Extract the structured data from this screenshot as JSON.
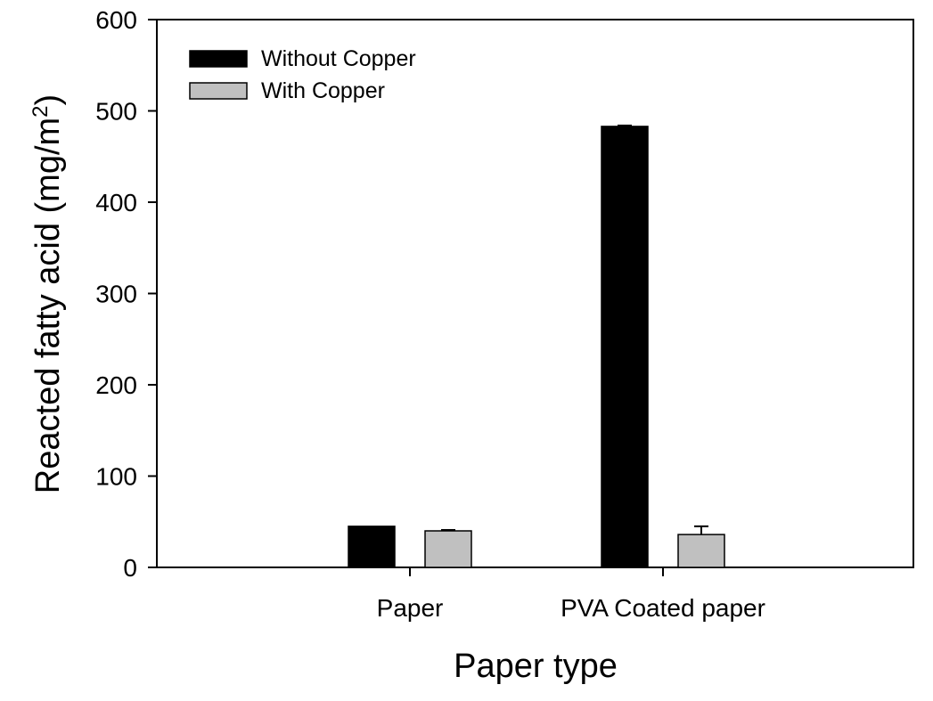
{
  "chart_data": {
    "type": "bar",
    "categories": [
      "Paper",
      "PVA Coated paper"
    ],
    "series": [
      {
        "name": "Without Copper",
        "values": [
          45,
          483
        ],
        "errors": [
          0,
          1
        ],
        "color": "#000000"
      },
      {
        "name": "With Copper",
        "values": [
          40,
          36
        ],
        "errors": [
          1,
          9
        ],
        "color": "#c0c0c0"
      }
    ],
    "xlabel": "Paper type",
    "ylabel": "Reacted fatty acid (mg/m",
    "ylabel_sup": "2",
    "ylabel_close": ")",
    "ylim": [
      0,
      600
    ],
    "yticks": [
      "0",
      "100",
      "200",
      "300",
      "400",
      "500",
      "600"
    ],
    "grid": false,
    "legend_position": "top-left"
  }
}
